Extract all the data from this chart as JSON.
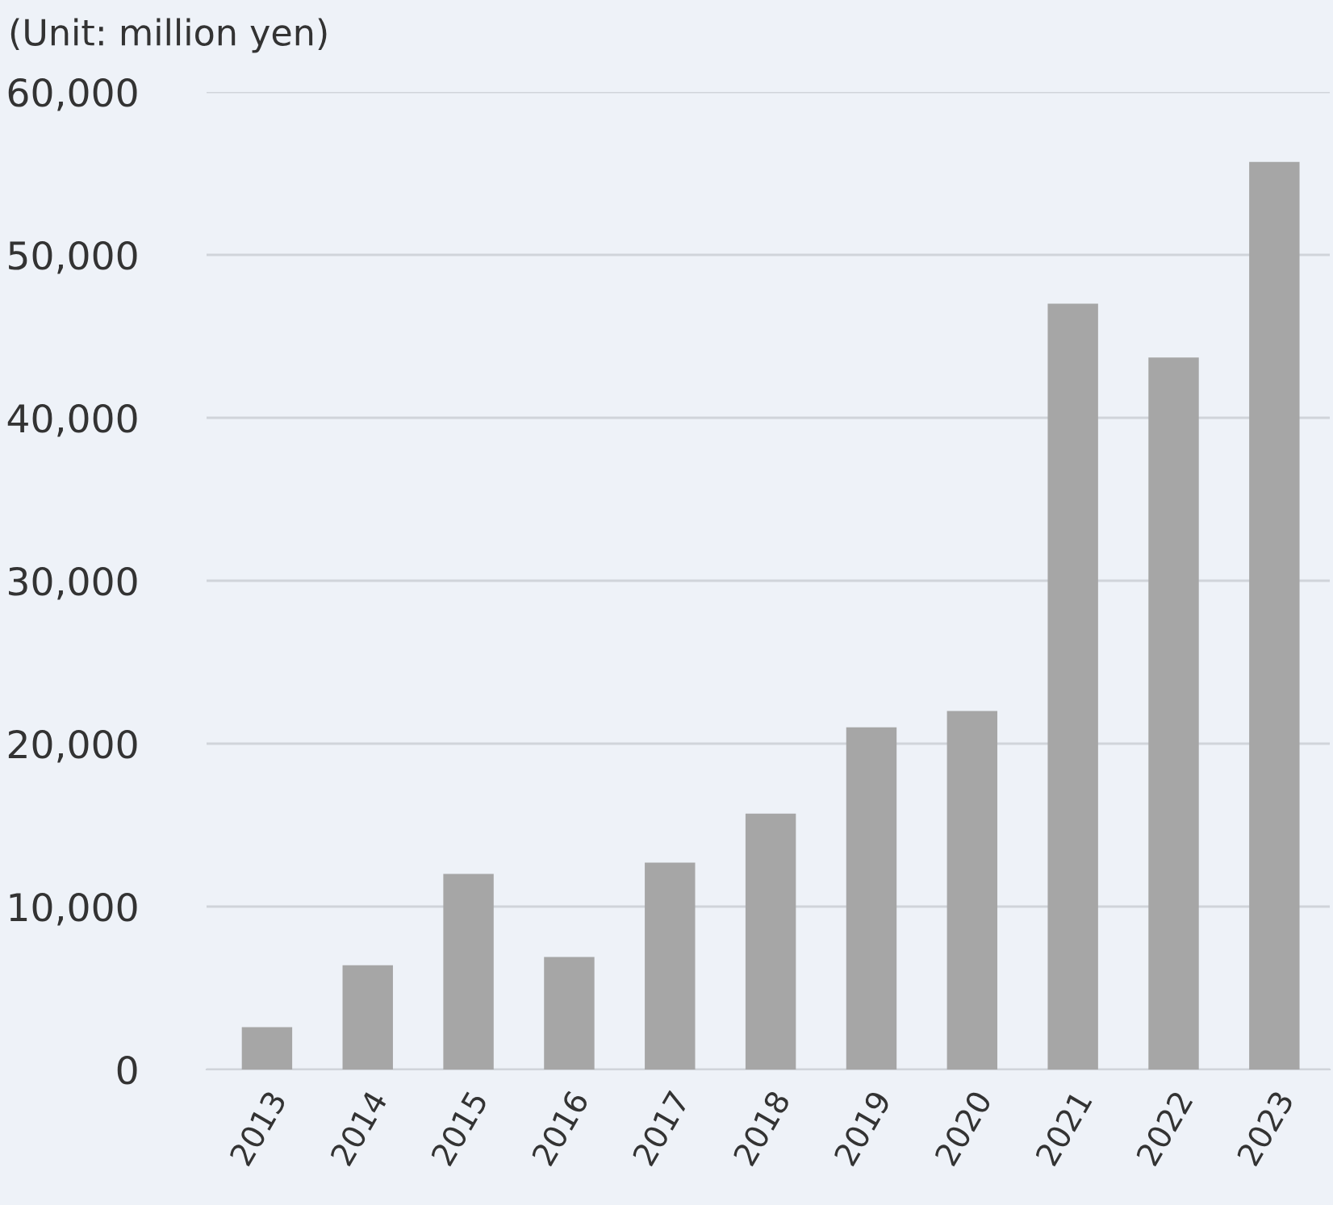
{
  "chart_data": {
    "type": "bar",
    "ylabel": "(Unit: million yen)",
    "categories": [
      "2013",
      "2014",
      "2015",
      "2016",
      "2017",
      "2018",
      "2019",
      "2020",
      "2021",
      "2022",
      "2023"
    ],
    "values": [
      2600,
      6400,
      12000,
      6900,
      12700,
      15700,
      21000,
      22000,
      47000,
      43700,
      55700
    ],
    "color": "#a6a6a6",
    "ylim": [
      0,
      60000
    ],
    "yticks": [
      {
        "value": 0,
        "label": "0"
      },
      {
        "value": 10000,
        "label": "10,000"
      },
      {
        "value": 20000,
        "label": "20,000"
      },
      {
        "value": 30000,
        "label": "30,000"
      },
      {
        "value": 40000,
        "label": "40,000"
      },
      {
        "value": 50000,
        "label": "50,000"
      },
      {
        "value": 60000,
        "label": "60,000"
      }
    ],
    "grid": "y"
  }
}
